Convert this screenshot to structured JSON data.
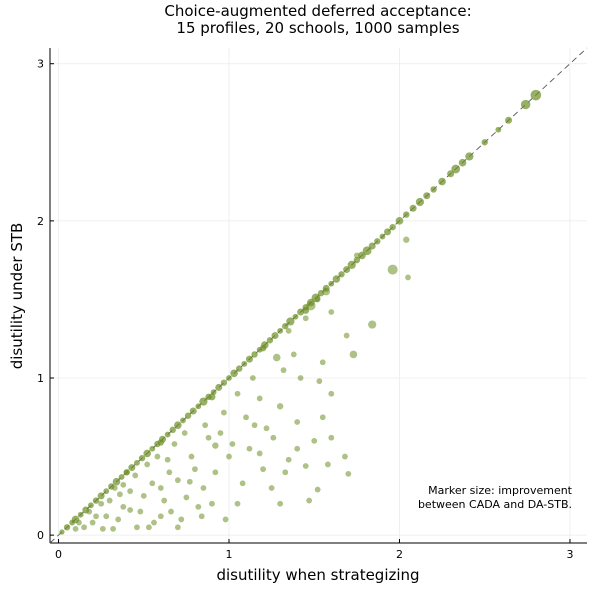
{
  "chart_data": {
    "type": "scatter",
    "title_line1": "Choice-augmented deferred acceptance:",
    "title_line2": "15 profiles, 20 schools, 1000 samples",
    "xlabel": "disutility when strategizing",
    "ylabel": "disutility under STB",
    "xlim": [
      -0.05,
      3.1
    ],
    "ylim": [
      -0.05,
      3.1
    ],
    "xticks": [
      0,
      1,
      2,
      3
    ],
    "yticks": [
      0,
      1,
      2,
      3
    ],
    "xtick_labels": [
      "0",
      "1",
      "2",
      "3"
    ],
    "ytick_labels": [
      "0",
      "1",
      "2",
      "3"
    ],
    "grid": true,
    "marker_color": "#6b8e23",
    "reference_line": "y = x (dashed)",
    "annotation_line1": "Marker size: improvement",
    "annotation_line2": "between CADA and DA-STB.",
    "diagonal_points": [
      [
        0.02,
        0.02,
        0.04
      ],
      [
        0.05,
        0.05,
        0.06
      ],
      [
        0.08,
        0.08,
        0.05
      ],
      [
        0.1,
        0.1,
        0.08
      ],
      [
        0.13,
        0.13,
        0.05
      ],
      [
        0.16,
        0.16,
        0.07
      ],
      [
        0.19,
        0.19,
        0.05
      ],
      [
        0.22,
        0.22,
        0.06
      ],
      [
        0.25,
        0.25,
        0.07
      ],
      [
        0.28,
        0.28,
        0.05
      ],
      [
        0.31,
        0.31,
        0.06
      ],
      [
        0.34,
        0.34,
        0.08
      ],
      [
        0.37,
        0.37,
        0.05
      ],
      [
        0.4,
        0.4,
        0.06
      ],
      [
        0.43,
        0.43,
        0.07
      ],
      [
        0.46,
        0.46,
        0.05
      ],
      [
        0.49,
        0.49,
        0.06
      ],
      [
        0.52,
        0.52,
        0.08
      ],
      [
        0.55,
        0.55,
        0.05
      ],
      [
        0.58,
        0.58,
        0.06
      ],
      [
        0.61,
        0.61,
        0.07
      ],
      [
        0.64,
        0.64,
        0.05
      ],
      [
        0.67,
        0.67,
        0.06
      ],
      [
        0.7,
        0.7,
        0.08
      ],
      [
        0.73,
        0.73,
        0.05
      ],
      [
        0.76,
        0.76,
        0.06
      ],
      [
        0.79,
        0.79,
        0.07
      ],
      [
        0.82,
        0.82,
        0.05
      ],
      [
        0.85,
        0.85,
        0.09
      ],
      [
        0.88,
        0.88,
        0.06
      ],
      [
        0.91,
        0.91,
        0.05
      ],
      [
        0.94,
        0.94,
        0.07
      ],
      [
        0.97,
        0.97,
        0.06
      ],
      [
        1.0,
        1.0,
        0.05
      ],
      [
        1.03,
        1.03,
        0.08
      ],
      [
        1.06,
        1.06,
        0.06
      ],
      [
        1.09,
        1.09,
        0.05
      ],
      [
        1.12,
        1.12,
        0.07
      ],
      [
        1.15,
        1.15,
        0.06
      ],
      [
        1.18,
        1.18,
        0.05
      ],
      [
        1.21,
        1.21,
        0.08
      ],
      [
        1.24,
        1.24,
        0.06
      ],
      [
        1.27,
        1.27,
        0.07
      ],
      [
        1.3,
        1.3,
        0.05
      ],
      [
        1.33,
        1.33,
        0.06
      ],
      [
        1.36,
        1.36,
        0.09
      ],
      [
        1.39,
        1.39,
        0.05
      ],
      [
        1.42,
        1.42,
        0.07
      ],
      [
        1.45,
        1.45,
        0.06
      ],
      [
        1.48,
        1.48,
        0.08
      ],
      [
        1.51,
        1.51,
        0.1
      ],
      [
        1.54,
        1.54,
        0.06
      ],
      [
        1.57,
        1.57,
        0.07
      ],
      [
        1.6,
        1.6,
        0.05
      ],
      [
        1.63,
        1.63,
        0.08
      ],
      [
        1.66,
        1.66,
        0.06
      ],
      [
        1.69,
        1.69,
        0.07
      ],
      [
        1.72,
        1.72,
        0.09
      ],
      [
        1.75,
        1.75,
        0.06
      ],
      [
        1.78,
        1.78,
        0.08
      ],
      [
        1.81,
        1.81,
        0.1
      ],
      [
        1.84,
        1.84,
        0.07
      ],
      [
        1.87,
        1.87,
        0.06
      ],
      [
        1.9,
        1.9,
        0.05
      ],
      [
        1.93,
        1.93,
        0.07
      ],
      [
        1.96,
        1.96,
        0.06
      ],
      [
        2.0,
        2.0,
        0.08
      ],
      [
        2.04,
        2.04,
        0.06
      ],
      [
        2.08,
        2.08,
        0.07
      ],
      [
        2.12,
        2.12,
        0.09
      ],
      [
        2.16,
        2.16,
        0.07
      ],
      [
        2.2,
        2.2,
        0.06
      ],
      [
        2.25,
        2.25,
        0.08
      ],
      [
        2.3,
        2.3,
        0.07
      ],
      [
        2.33,
        2.33,
        0.1
      ],
      [
        2.37,
        2.37,
        0.08
      ],
      [
        2.41,
        2.41,
        0.09
      ],
      [
        2.5,
        2.5,
        0.06
      ],
      [
        2.58,
        2.58,
        0.05
      ],
      [
        2.64,
        2.64,
        0.07
      ],
      [
        2.74,
        2.74,
        0.11
      ],
      [
        2.8,
        2.8,
        0.13
      ],
      [
        0.6,
        0.59,
        0.06
      ],
      [
        0.9,
        0.88,
        0.07
      ],
      [
        1.2,
        1.19,
        0.06
      ],
      [
        1.45,
        1.43,
        0.07
      ]
    ],
    "scatter_points": [
      [
        1.96,
        1.69,
        0.12
      ],
      [
        1.84,
        1.34,
        0.09
      ],
      [
        1.73,
        1.15,
        0.08
      ],
      [
        2.04,
        1.88,
        0.06
      ],
      [
        2.05,
        1.64,
        0.05
      ],
      [
        1.75,
        1.78,
        0.05
      ],
      [
        1.48,
        1.46,
        0.11
      ],
      [
        1.57,
        1.55,
        0.08
      ],
      [
        1.52,
        1.5,
        0.05
      ],
      [
        1.45,
        1.38,
        0.05
      ],
      [
        1.6,
        1.42,
        0.05
      ],
      [
        1.69,
        1.27,
        0.05
      ],
      [
        1.55,
        1.1,
        0.05
      ],
      [
        1.35,
        1.3,
        0.05
      ],
      [
        1.38,
        1.15,
        0.05
      ],
      [
        1.42,
        1.0,
        0.05
      ],
      [
        1.32,
        1.05,
        0.05
      ],
      [
        1.53,
        0.98,
        0.05
      ],
      [
        1.6,
        0.9,
        0.05
      ],
      [
        1.55,
        0.75,
        0.05
      ],
      [
        1.28,
        1.13,
        0.08
      ],
      [
        1.14,
        1.0,
        0.05
      ],
      [
        1.18,
        0.87,
        0.05
      ],
      [
        1.1,
        0.75,
        0.05
      ],
      [
        1.15,
        0.7,
        0.05
      ],
      [
        1.22,
        0.68,
        0.05
      ],
      [
        1.3,
        0.82,
        0.06
      ],
      [
        1.5,
        0.6,
        0.05
      ],
      [
        1.68,
        0.5,
        0.05
      ],
      [
        1.7,
        0.39,
        0.05
      ],
      [
        1.6,
        0.62,
        0.05
      ],
      [
        1.4,
        0.55,
        0.05
      ],
      [
        1.45,
        0.44,
        0.05
      ],
      [
        1.35,
        0.48,
        0.05
      ],
      [
        1.52,
        0.29,
        0.05
      ],
      [
        1.47,
        0.22,
        0.05
      ],
      [
        1.2,
        0.42,
        0.05
      ],
      [
        1.25,
        0.3,
        0.05
      ],
      [
        1.3,
        0.2,
        0.05
      ],
      [
        1.08,
        0.33,
        0.05
      ],
      [
        1.05,
        0.2,
        0.05
      ],
      [
        0.98,
        0.1,
        0.05
      ],
      [
        0.95,
        0.65,
        0.05
      ],
      [
        1.0,
        0.5,
        0.05
      ],
      [
        0.92,
        0.4,
        0.05
      ],
      [
        0.85,
        0.3,
        0.05
      ],
      [
        0.82,
        0.18,
        0.05
      ],
      [
        0.78,
        0.5,
        0.05
      ],
      [
        0.92,
        0.57,
        0.06
      ],
      [
        0.88,
        0.62,
        0.05
      ],
      [
        0.8,
        0.42,
        0.05
      ],
      [
        0.75,
        0.24,
        0.05
      ],
      [
        0.72,
        0.1,
        0.05
      ],
      [
        0.68,
        0.58,
        0.05
      ],
      [
        0.7,
        0.35,
        0.05
      ],
      [
        0.65,
        0.4,
        0.05
      ],
      [
        0.62,
        0.22,
        0.05
      ],
      [
        0.6,
        0.12,
        0.05
      ],
      [
        0.58,
        0.5,
        0.05
      ],
      [
        0.55,
        0.33,
        0.05
      ],
      [
        0.52,
        0.45,
        0.05
      ],
      [
        0.5,
        0.25,
        0.05
      ],
      [
        0.48,
        0.15,
        0.05
      ],
      [
        0.45,
        0.38,
        0.05
      ],
      [
        0.42,
        0.28,
        0.05
      ],
      [
        0.4,
        0.4,
        0.05
      ],
      [
        0.38,
        0.18,
        0.05
      ],
      [
        0.35,
        0.1,
        0.05
      ],
      [
        0.33,
        0.3,
        0.05
      ],
      [
        0.3,
        0.22,
        0.05
      ],
      [
        0.28,
        0.12,
        0.05
      ],
      [
        0.25,
        0.2,
        0.05
      ],
      [
        0.22,
        0.12,
        0.05
      ],
      [
        0.2,
        0.08,
        0.05
      ],
      [
        0.18,
        0.15,
        0.05
      ],
      [
        0.15,
        0.05,
        0.05
      ],
      [
        0.12,
        0.08,
        0.05
      ],
      [
        0.1,
        0.04,
        0.05
      ],
      [
        0.6,
        0.3,
        0.05
      ],
      [
        0.66,
        0.15,
        0.05
      ],
      [
        0.74,
        0.65,
        0.05
      ],
      [
        0.86,
        0.7,
        0.05
      ],
      [
        0.97,
        0.78,
        0.05
      ],
      [
        1.05,
        0.9,
        0.05
      ],
      [
        1.12,
        0.55,
        0.05
      ],
      [
        0.77,
        0.34,
        0.05
      ],
      [
        0.56,
        0.08,
        0.05
      ],
      [
        0.46,
        0.05,
        0.05
      ],
      [
        0.84,
        0.12,
        0.05
      ],
      [
        1.02,
        0.58,
        0.05
      ],
      [
        1.18,
        0.52,
        0.05
      ],
      [
        1.26,
        0.62,
        0.05
      ],
      [
        0.9,
        0.2,
        0.05
      ],
      [
        0.64,
        0.48,
        0.05
      ],
      [
        0.53,
        0.05,
        0.05
      ],
      [
        0.7,
        0.05,
        0.05
      ],
      [
        0.32,
        0.04,
        0.05
      ],
      [
        0.42,
        0.16,
        0.05
      ],
      [
        0.36,
        0.26,
        0.05
      ],
      [
        0.26,
        0.04,
        0.05
      ],
      [
        1.4,
        0.72,
        0.05
      ],
      [
        1.33,
        0.4,
        0.05
      ],
      [
        1.58,
        0.45,
        0.05
      ],
      [
        0.38,
        0.32,
        0.05
      ]
    ]
  }
}
